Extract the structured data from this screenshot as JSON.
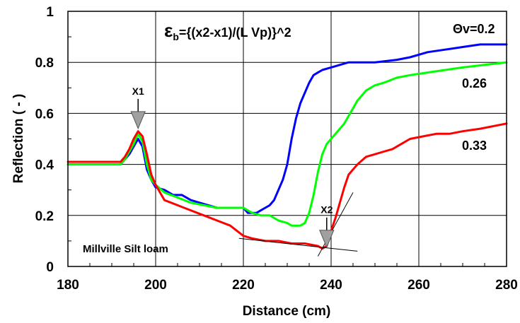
{
  "chart_data": {
    "type": "line",
    "xlabel": "Distance (cm)",
    "ylabel": "Reflection ( - )",
    "xlim": [
      180,
      280
    ],
    "ylim": [
      0,
      1
    ],
    "x_ticks": [
      180,
      200,
      220,
      240,
      260,
      280
    ],
    "y_ticks": [
      0,
      0.2,
      0.4,
      0.6,
      0.8,
      1
    ],
    "grid": true,
    "series": [
      {
        "label": "Θv=0.2",
        "color": "#0000ff",
        "points": [
          [
            180,
            0.4
          ],
          [
            192,
            0.4
          ],
          [
            193,
            0.42
          ],
          [
            194,
            0.44
          ],
          [
            195,
            0.47
          ],
          [
            196,
            0.5
          ],
          [
            197,
            0.47
          ],
          [
            198,
            0.38
          ],
          [
            199,
            0.34
          ],
          [
            200,
            0.31
          ],
          [
            202,
            0.3
          ],
          [
            204,
            0.28
          ],
          [
            206,
            0.28
          ],
          [
            208,
            0.26
          ],
          [
            210,
            0.25
          ],
          [
            212,
            0.24
          ],
          [
            214,
            0.23
          ],
          [
            216,
            0.23
          ],
          [
            218,
            0.23
          ],
          [
            220,
            0.23
          ],
          [
            221,
            0.21
          ],
          [
            223,
            0.21
          ],
          [
            224,
            0.22
          ],
          [
            225,
            0.23
          ],
          [
            226,
            0.24
          ],
          [
            227,
            0.26
          ],
          [
            228,
            0.3
          ],
          [
            229,
            0.34
          ],
          [
            230,
            0.4
          ],
          [
            231,
            0.5
          ],
          [
            232,
            0.58
          ],
          [
            233,
            0.64
          ],
          [
            234,
            0.68
          ],
          [
            235,
            0.72
          ],
          [
            236,
            0.75
          ],
          [
            237,
            0.76
          ],
          [
            238,
            0.77
          ],
          [
            240,
            0.78
          ],
          [
            242,
            0.79
          ],
          [
            244,
            0.8
          ],
          [
            246,
            0.8
          ],
          [
            250,
            0.8
          ],
          [
            255,
            0.81
          ],
          [
            258,
            0.82
          ],
          [
            262,
            0.84
          ],
          [
            266,
            0.85
          ],
          [
            270,
            0.86
          ],
          [
            274,
            0.87
          ],
          [
            280,
            0.87
          ]
        ]
      },
      {
        "label": "0.26",
        "color": "#00ff00",
        "points": [
          [
            180,
            0.4
          ],
          [
            192,
            0.4
          ],
          [
            193,
            0.42
          ],
          [
            194,
            0.45
          ],
          [
            195,
            0.48
          ],
          [
            196,
            0.52
          ],
          [
            197,
            0.49
          ],
          [
            198,
            0.4
          ],
          [
            199,
            0.34
          ],
          [
            200,
            0.32
          ],
          [
            202,
            0.29
          ],
          [
            205,
            0.27
          ],
          [
            208,
            0.25
          ],
          [
            211,
            0.24
          ],
          [
            214,
            0.23
          ],
          [
            218,
            0.23
          ],
          [
            220,
            0.23
          ],
          [
            222,
            0.21
          ],
          [
            224,
            0.2
          ],
          [
            226,
            0.2
          ],
          [
            228,
            0.18
          ],
          [
            230,
            0.17
          ],
          [
            231,
            0.16
          ],
          [
            233,
            0.16
          ],
          [
            234,
            0.17
          ],
          [
            235,
            0.21
          ],
          [
            236,
            0.28
          ],
          [
            237,
            0.37
          ],
          [
            238,
            0.44
          ],
          [
            239,
            0.48
          ],
          [
            240,
            0.5
          ],
          [
            241,
            0.52
          ],
          [
            242,
            0.54
          ],
          [
            243,
            0.56
          ],
          [
            244,
            0.59
          ],
          [
            245,
            0.62
          ],
          [
            246,
            0.65
          ],
          [
            247,
            0.67
          ],
          [
            248,
            0.69
          ],
          [
            250,
            0.71
          ],
          [
            252,
            0.72
          ],
          [
            255,
            0.74
          ],
          [
            258,
            0.75
          ],
          [
            262,
            0.76
          ],
          [
            266,
            0.77
          ],
          [
            270,
            0.78
          ],
          [
            275,
            0.79
          ],
          [
            280,
            0.8
          ]
        ]
      },
      {
        "label": "0.33",
        "color": "#ff0000",
        "points": [
          [
            180,
            0.41
          ],
          [
            192,
            0.41
          ],
          [
            193,
            0.43
          ],
          [
            194,
            0.46
          ],
          [
            195,
            0.5
          ],
          [
            196,
            0.53
          ],
          [
            197,
            0.51
          ],
          [
            198,
            0.44
          ],
          [
            199,
            0.36
          ],
          [
            200,
            0.32
          ],
          [
            202,
            0.26
          ],
          [
            205,
            0.24
          ],
          [
            208,
            0.22
          ],
          [
            211,
            0.2
          ],
          [
            214,
            0.18
          ],
          [
            217,
            0.16
          ],
          [
            220,
            0.12
          ],
          [
            222,
            0.11
          ],
          [
            225,
            0.1
          ],
          [
            228,
            0.1
          ],
          [
            231,
            0.09
          ],
          [
            234,
            0.09
          ],
          [
            237,
            0.08
          ],
          [
            238,
            0.07
          ],
          [
            239,
            0.08
          ],
          [
            240,
            0.14
          ],
          [
            241,
            0.19
          ],
          [
            242,
            0.25
          ],
          [
            243,
            0.31
          ],
          [
            244,
            0.36
          ],
          [
            245,
            0.38
          ],
          [
            246,
            0.4
          ],
          [
            248,
            0.43
          ],
          [
            250,
            0.44
          ],
          [
            252,
            0.45
          ],
          [
            254,
            0.46
          ],
          [
            256,
            0.48
          ],
          [
            258,
            0.5
          ],
          [
            261,
            0.51
          ],
          [
            264,
            0.52
          ],
          [
            267,
            0.52
          ],
          [
            270,
            0.53
          ],
          [
            274,
            0.54
          ],
          [
            280,
            0.56
          ]
        ]
      }
    ],
    "tangents": [
      {
        "from": [
          219,
          0.11
        ],
        "to": [
          246,
          0.06
        ]
      },
      {
        "from": [
          237,
          0.04
        ],
        "to": [
          245,
          0.29
        ]
      }
    ],
    "markers": [
      {
        "label": "X1",
        "x": 196,
        "y": 0.535
      },
      {
        "label": "X2",
        "x": 239,
        "y": 0.07
      }
    ],
    "annotations": {
      "equation_symbol": "ε",
      "equation_sub": "b",
      "equation_rest": "={(x2-x1)/(L Vp)}^2",
      "soil": "Millville Silt loam"
    }
  }
}
